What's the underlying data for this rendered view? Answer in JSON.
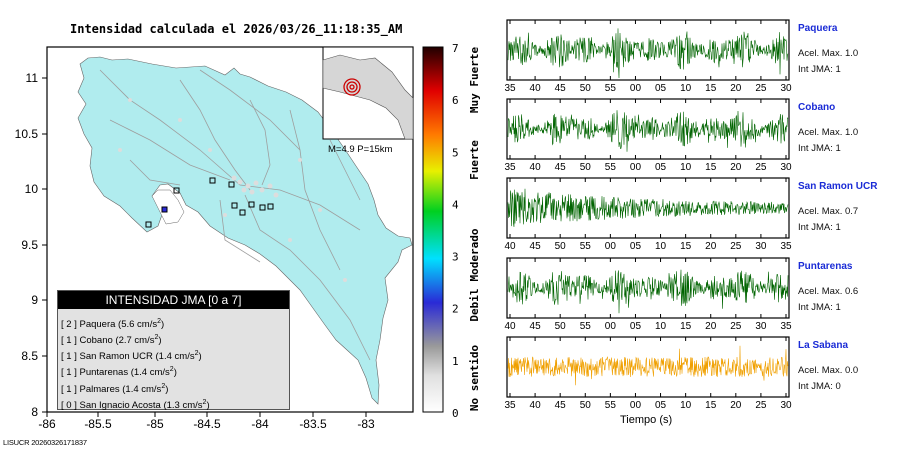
{
  "header": {
    "title": "Intensidad calculada el 2026/03/26_11:18:35_AM"
  },
  "map": {
    "x_ticks": [
      "-86",
      "-85.5",
      "-85",
      "-84.5",
      "-84",
      "-83.5",
      "-83"
    ],
    "y_ticks": [
      "11",
      "10.5",
      "10",
      "9.5",
      "9",
      "8.5",
      "8"
    ],
    "land_color": "#b0ecee",
    "water_color": "#ffffff",
    "road_color": "#9e9e9e",
    "event_color": "#cc0000",
    "inset_caption": "M=4.9 P=15km"
  },
  "colorbar": {
    "ticks": [
      "7",
      "6",
      "5",
      "4",
      "3",
      "2",
      "1",
      "0"
    ],
    "labels": [
      "Muy Fuerte",
      "Fuerte",
      "Moderado",
      "Debil",
      "No sentido"
    ],
    "colors": [
      "#ffffff",
      "#9a9a9a",
      "#2a2ad6",
      "#00e0ff",
      "#00d020",
      "#e8f000",
      "#ff7a00",
      "#e00000",
      "#200000"
    ]
  },
  "legend": {
    "title": "INTENSIDAD JMA [0 a 7]",
    "items": [
      {
        "int": "[ 2 ]",
        "name": "Paquera",
        "acc": "(5.6 cm/s",
        "sup": "2",
        "close": ")"
      },
      {
        "int": "[ 1 ]",
        "name": "Cobano",
        "acc": "(2.7 cm/s",
        "sup": "2",
        "close": ")"
      },
      {
        "int": "[ 1 ]",
        "name": "San Ramon UCR",
        "acc": "(1.4 cm/s",
        "sup": "2",
        "close": ")"
      },
      {
        "int": "[ 1 ]",
        "name": "Puntarenas",
        "acc": "(1.4 cm/s",
        "sup": "2",
        "close": ")"
      },
      {
        "int": "[ 1 ]",
        "name": "Palmares",
        "acc": "(1.4 cm/s",
        "sup": "2",
        "close": ")"
      },
      {
        "int": "[ 0 ]",
        "name": "San Ignacio Acosta",
        "acc": "(1.3 cm/s",
        "sup": "2",
        "close": ")"
      }
    ]
  },
  "stations": [
    {
      "name": "Paquera",
      "acc": "Acel. Max. 1.0",
      "jma": "Int JMA: 1",
      "color": "#006400",
      "ticks": [
        "35",
        "40",
        "45",
        "50",
        "55",
        "00",
        "05",
        "10",
        "15",
        "20",
        "25",
        "30"
      ]
    },
    {
      "name": "Cobano",
      "acc": "Acel. Max. 1.0",
      "jma": "Int JMA: 1",
      "color": "#006400",
      "ticks": [
        "35",
        "40",
        "45",
        "50",
        "55",
        "00",
        "05",
        "10",
        "15",
        "20",
        "25",
        "30"
      ]
    },
    {
      "name": "San Ramon UCR",
      "acc": "Acel. Max. 0.7",
      "jma": "Int JMA: 1",
      "color": "#006400",
      "ticks": [
        "40",
        "45",
        "50",
        "55",
        "00",
        "05",
        "10",
        "15",
        "20",
        "25",
        "30",
        "35"
      ]
    },
    {
      "name": "Puntarenas",
      "acc": "Acel. Max. 0.6",
      "jma": "Int JMA: 1",
      "color": "#006400",
      "ticks": [
        "40",
        "45",
        "50",
        "55",
        "00",
        "05",
        "10",
        "15",
        "20",
        "25",
        "30",
        "35"
      ]
    },
    {
      "name": "La Sabana",
      "acc": "Acel. Max. 0.0",
      "jma": "Int JMA: 0",
      "color": "#f0a000",
      "ticks": [
        "35",
        "40",
        "45",
        "50",
        "55",
        "00",
        "05",
        "10",
        "15",
        "20",
        "25",
        "30"
      ]
    }
  ],
  "time_axis_label": "Tiempo (s)",
  "footer": "LISUCR 20260326171837"
}
